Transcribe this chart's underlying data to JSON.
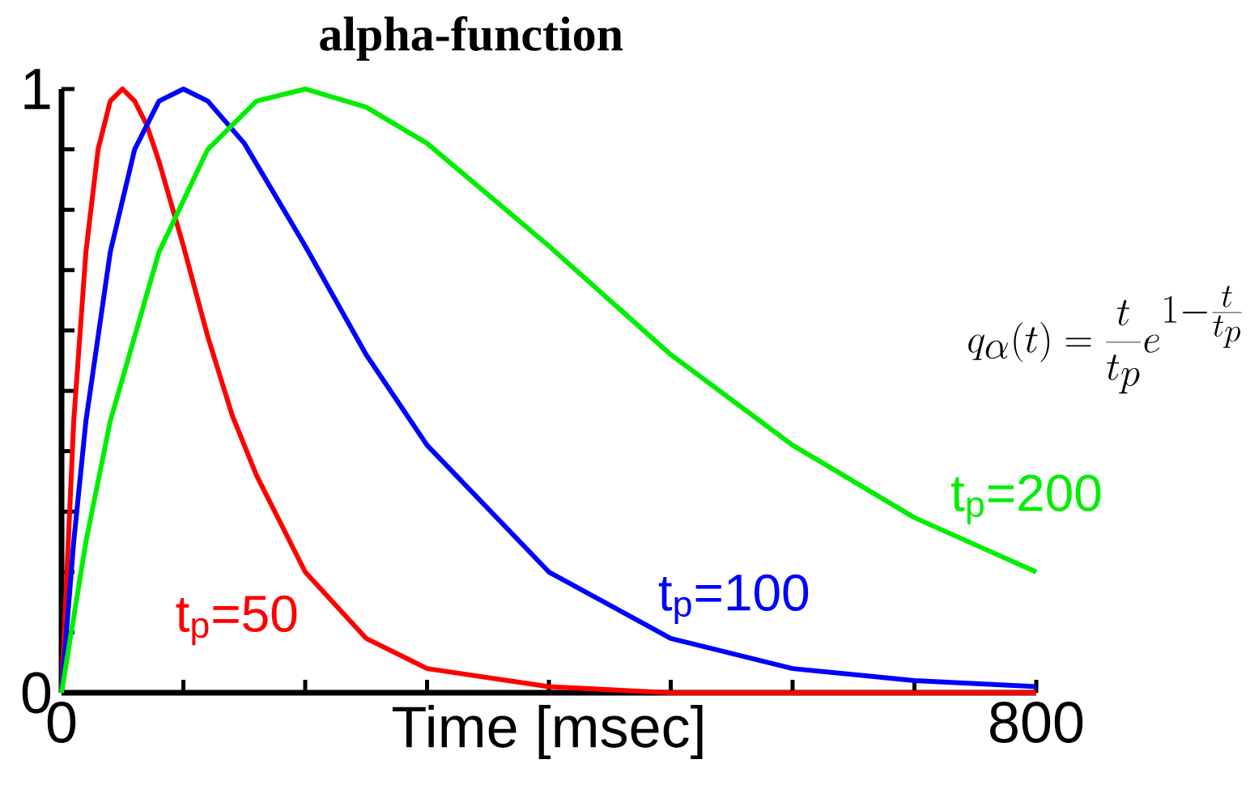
{
  "chart_data": {
    "type": "line",
    "title": "alpha-function",
    "xlabel": "Time [msec]",
    "annotations": [
      "q_{\\alpha}(t)=\\frac{t}{t_{p}}e^{1-\\frac{t}{t_{p}}}"
    ],
    "xlim": [
      0,
      800
    ],
    "ylim": [
      0,
      1
    ],
    "xticks": [
      0,
      {
        "value": 100,
        "label": null
      },
      {
        "value": 200,
        "label": null
      },
      {
        "value": 300,
        "label": null
      },
      {
        "value": 400,
        "label": null
      },
      {
        "value": 500,
        "label": null
      },
      {
        "value": 600,
        "label": null
      },
      {
        "value": 700,
        "label": null
      },
      800
    ],
    "yticks": [
      0,
      {
        "value": 0.1,
        "label": null
      },
      {
        "value": 0.2,
        "label": null
      },
      {
        "value": 0.3,
        "label": null
      },
      {
        "value": 0.4,
        "label": null
      },
      {
        "value": 0.5,
        "label": null
      },
      {
        "value": 0.6,
        "label": null
      },
      {
        "value": 0.7,
        "label": null
      },
      {
        "value": 0.8,
        "label": null
      },
      {
        "value": 0.9,
        "label": null
      },
      1
    ],
    "series": [
      {
        "name": "t$_{p}$=50",
        "color": "#ff0000",
        "x": [
          0,
          10,
          20,
          30,
          40,
          50,
          60,
          70,
          80,
          100,
          120,
          140,
          160,
          200,
          250,
          300,
          400,
          500,
          600,
          800
        ],
        "values": [
          0,
          0.45,
          0.73,
          0.9,
          0.98,
          1,
          0.98,
          0.94,
          0.88,
          0.74,
          0.59,
          0.46,
          0.36,
          0.2,
          0.09,
          0.04,
          0.01,
          0,
          0,
          0
        ]
      },
      {
        "name": "t$_{p}$=100",
        "color": "#0000ff",
        "x": [
          0,
          10,
          20,
          40,
          60,
          80,
          100,
          120,
          150,
          200,
          250,
          300,
          400,
          500,
          600,
          700,
          800
        ],
        "values": [
          0,
          0.25,
          0.45,
          0.73,
          0.9,
          0.98,
          1,
          0.98,
          0.91,
          0.74,
          0.56,
          0.41,
          0.2,
          0.09,
          0.04,
          0.02,
          0.01
        ]
      },
      {
        "name": "t$_{p}$=200",
        "color": "#00ee00",
        "x": [
          0,
          20,
          40,
          80,
          120,
          160,
          200,
          250,
          300,
          400,
          500,
          600,
          700,
          800
        ],
        "values": [
          0,
          0.25,
          0.45,
          0.73,
          0.9,
          0.98,
          1,
          0.97,
          0.91,
          0.74,
          0.56,
          0.41,
          0.29,
          0.2
        ]
      }
    ]
  }
}
